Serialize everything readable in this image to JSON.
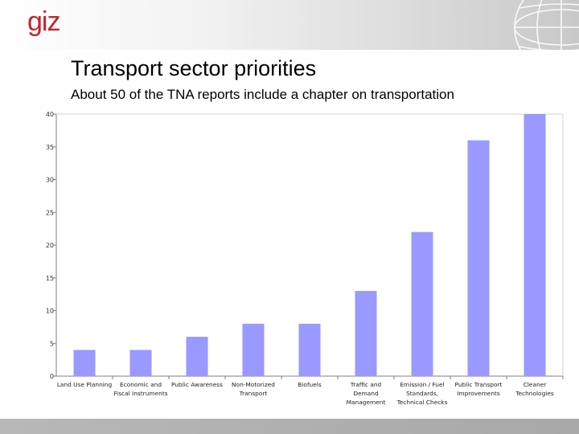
{
  "header": {
    "logo_text": "giz",
    "accent": "#c0262d"
  },
  "slide": {
    "title": "Transport sector priorities",
    "subtitle": "About 50 of the TNA reports include a chapter on transportation"
  },
  "chart_data": {
    "type": "bar",
    "title": "",
    "xlabel": "",
    "ylabel": "",
    "ylim": [
      0,
      40
    ],
    "yticks": [
      0,
      5,
      10,
      15,
      20,
      25,
      30,
      35,
      40
    ],
    "grid": false,
    "legend": "none",
    "bar_color": "#9999ff",
    "categories": [
      [
        "Land Use Planning"
      ],
      [
        "Economic and",
        "Fiscal Instruments"
      ],
      [
        "Public Awareness"
      ],
      [
        "Non-Motorized",
        "Transport"
      ],
      [
        "Biofuels"
      ],
      [
        "Traffic and",
        "Demand",
        "Management"
      ],
      [
        "Emission / Fuel",
        "Standards,",
        "Technical Checks"
      ],
      [
        "Public Transport",
        "Improvements"
      ],
      [
        "Cleaner",
        "Technologies"
      ]
    ],
    "values": [
      4,
      4,
      6,
      8,
      8,
      13,
      22,
      36,
      40
    ]
  }
}
